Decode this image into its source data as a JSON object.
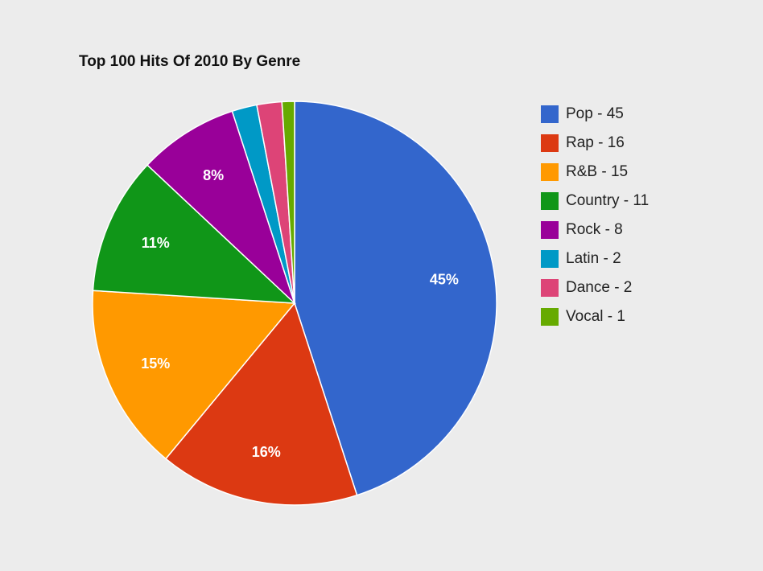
{
  "chart_data": {
    "type": "pie",
    "title": "Top 100 Hits Of 2010 By Genre",
    "categories": [
      "Pop",
      "Rap",
      "R&B",
      "Country",
      "Rock",
      "Latin",
      "Dance",
      "Vocal"
    ],
    "values": [
      45,
      16,
      15,
      11,
      8,
      2,
      2,
      1
    ],
    "legend_labels": [
      "Pop - 45",
      "Rap - 16",
      "R&B - 15",
      "Country - 11",
      "Rock - 8",
      "Latin - 2",
      "Dance - 2",
      "Vocal - 1"
    ],
    "slice_labels": [
      "45%",
      "16%",
      "15%",
      "11%",
      "8%",
      "",
      "",
      ""
    ],
    "colors": [
      "#3366cc",
      "#dc3912",
      "#ff9900",
      "#109618",
      "#990099",
      "#0099c6",
      "#dd4477",
      "#66aa00"
    ],
    "legend_position": "right",
    "start_angle": "top, clockwise"
  }
}
